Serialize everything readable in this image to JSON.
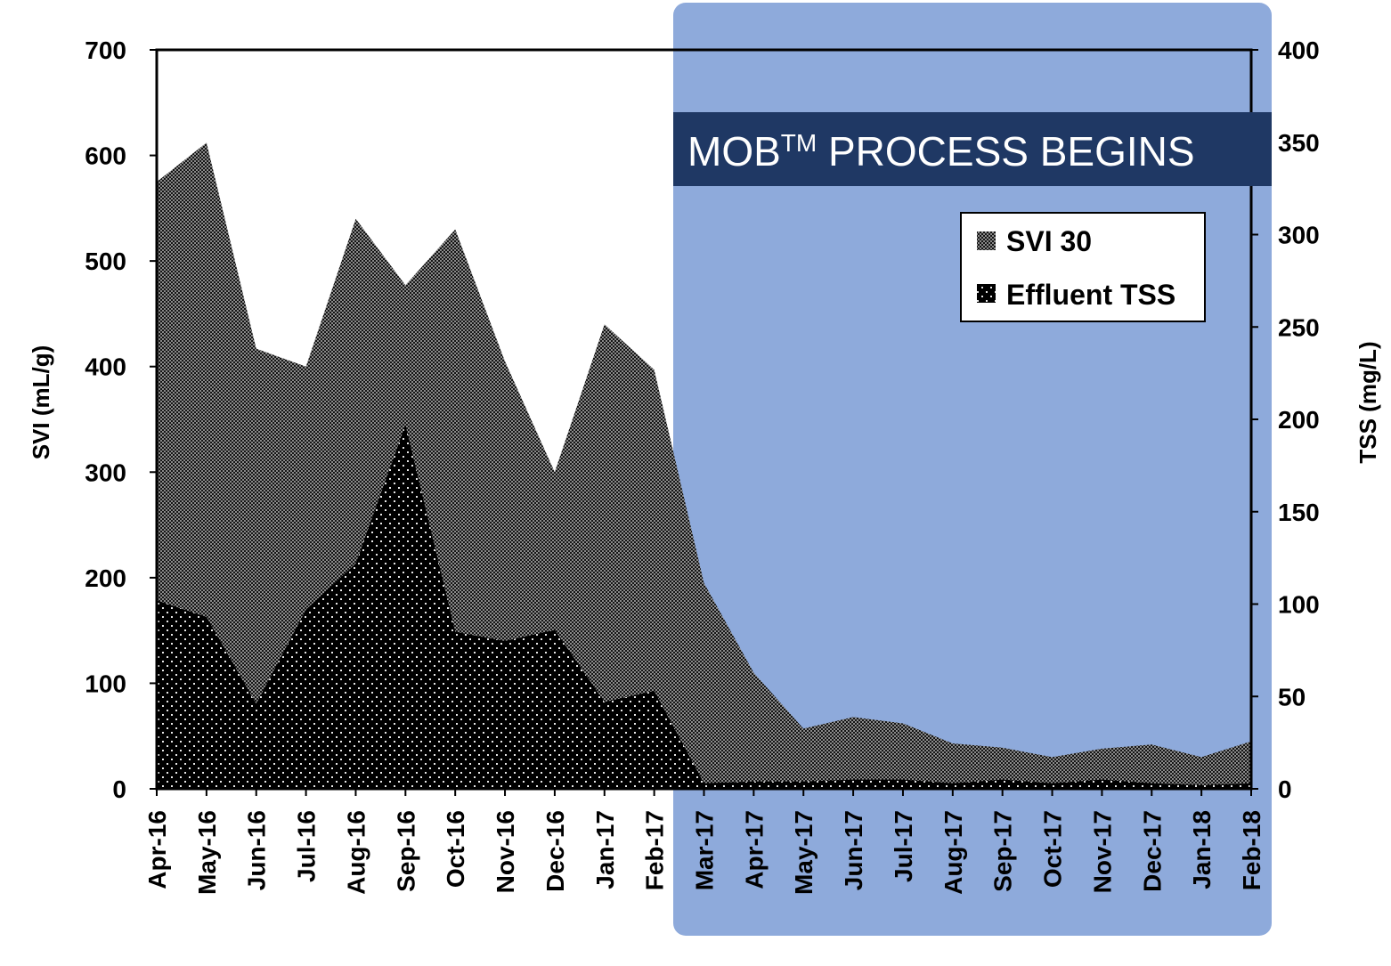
{
  "chart_data": {
    "type": "area",
    "categories": [
      "Apr-16",
      "May-16",
      "Jun-16",
      "Jul-16",
      "Aug-16",
      "Sep-16",
      "Oct-16",
      "Nov-16",
      "Dec-16",
      "Jan-17",
      "Feb-17",
      "Mar-17",
      "Apr-17",
      "May-17",
      "Jun-17",
      "Jul-17",
      "Aug-17",
      "Sep-17",
      "Oct-17",
      "Nov-17",
      "Dec-17",
      "Jan-18",
      "Feb-18"
    ],
    "series": [
      {
        "name": "SVI 30",
        "axis": "left",
        "values": [
          575,
          612,
          417,
          400,
          540,
          477,
          530,
          405,
          300,
          440,
          397,
          195,
          110,
          57,
          68,
          62,
          43,
          39,
          30,
          38,
          42,
          30,
          45
        ]
      },
      {
        "name": "Effluent TSS",
        "axis": "right",
        "values": [
          102,
          93,
          46,
          97,
          122,
          197,
          85,
          80,
          86,
          47,
          53,
          3,
          4,
          4,
          5,
          5,
          3,
          5,
          3,
          5,
          3,
          2,
          3
        ]
      }
    ],
    "y_left": {
      "label": "SVI (mL/g)",
      "ylim": [
        0,
        700
      ],
      "ticks": [
        0,
        100,
        200,
        300,
        400,
        500,
        600,
        700
      ]
    },
    "y_right": {
      "label": "TSS (mg/L)",
      "ylim": [
        0,
        400
      ],
      "ticks": [
        0,
        50,
        100,
        150,
        200,
        250,
        300,
        350,
        400
      ]
    },
    "annotation": {
      "text": "MOB",
      "superscript": "TM",
      "rest": " PROCESS BEGINS",
      "start_category": "Mar-17"
    },
    "legend": {
      "placement": "top-right"
    },
    "colors": {
      "shade": "#8EAADB",
      "banner": "#1F3864"
    },
    "grid": false
  }
}
